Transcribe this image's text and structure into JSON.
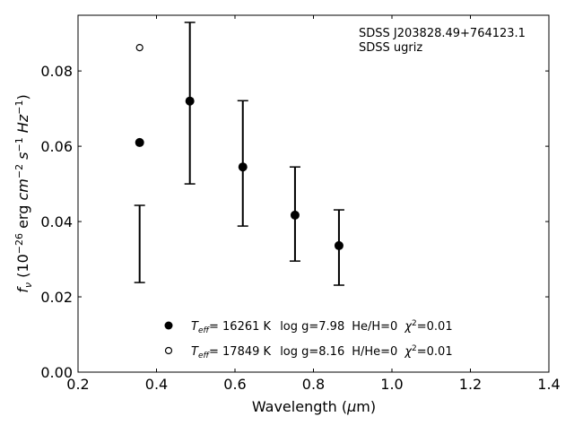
{
  "chart_data": {
    "type": "scatter",
    "title": "",
    "xlabel": "Wavelength (μm)",
    "ylabel": "f_ν (10^-26 erg cm^-2 s^-1 Hz^-1)",
    "xlim": [
      0.2,
      1.4
    ],
    "ylim": [
      0.0,
      0.0948
    ],
    "xticks": [
      "0.2",
      "0.4",
      "0.6",
      "0.8",
      "1.0",
      "1.2",
      "1.4"
    ],
    "yticks": [
      "0.00",
      "0.02",
      "0.04",
      "0.06",
      "0.08"
    ],
    "grid": false,
    "annotation": [
      "SDSS J203828.49+764123.1",
      "SDSS ugriz"
    ],
    "observed": {
      "x": [
        0.357,
        0.485,
        0.62,
        0.753,
        0.865
      ],
      "y": [
        0.034,
        0.0714,
        0.0555,
        0.042,
        0.0331
      ],
      "yerr_low": [
        0.0238,
        0.05,
        0.0388,
        0.0295,
        0.0231
      ],
      "yerr_high": [
        0.0443,
        0.0929,
        0.0721,
        0.0545,
        0.0431
      ]
    },
    "series": [
      {
        "name": "T_eff= 16261 K  log g=7.98  He/H=0  χ²=0.01",
        "marker": "filled-circle",
        "x": [
          0.357,
          0.485,
          0.62,
          0.753,
          0.865
        ],
        "y": [
          0.061,
          0.072,
          0.0545,
          0.0417,
          0.0336
        ]
      },
      {
        "name": "T_eff= 17849 K  log g=8.16  H/He=0  χ²=0.01",
        "marker": "open-circle",
        "x": [
          0.357
        ],
        "y": [
          0.0862
        ]
      }
    ],
    "legend": {
      "placement": "bottom-center",
      "entries": [
        {
          "teff": "16261 K",
          "logg": "log g=7.98",
          "comp": "He/H=0",
          "chi": "=0.01"
        },
        {
          "teff": "17849 K",
          "logg": "log g=8.16",
          "comp": "H/He=0",
          "chi": "=0.01"
        }
      ]
    }
  }
}
